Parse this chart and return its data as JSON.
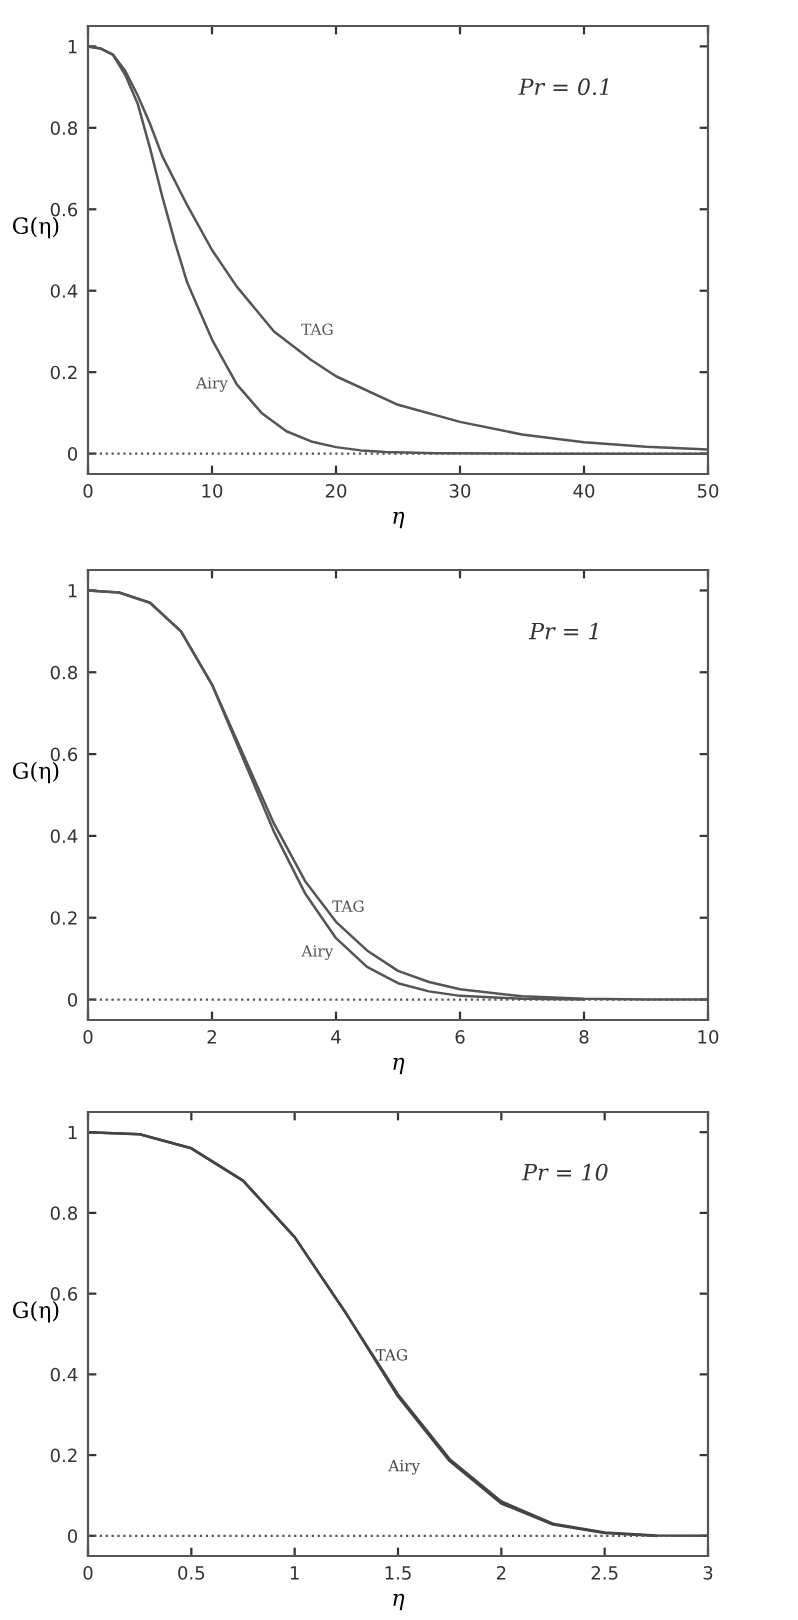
{
  "chart_data": [
    {
      "type": "line",
      "xlabel": "η",
      "ylabel": "G(η)",
      "xlim": [
        0,
        50
      ],
      "ylim": [
        -0.05,
        1.05
      ],
      "xticks": [
        0,
        10,
        20,
        30,
        40,
        50
      ],
      "yticks": [
        0,
        0.2,
        0.4,
        0.6,
        0.8,
        1
      ],
      "grid": false,
      "marker": "none",
      "line_style": "solid",
      "series": [
        {
          "name": "TAG",
          "color": "#555555",
          "x": [
            0,
            1,
            2,
            3,
            4,
            5,
            6,
            8,
            10,
            12,
            15,
            18,
            20,
            25,
            30,
            35,
            40,
            45,
            50
          ],
          "values": [
            1,
            0.995,
            0.98,
            0.94,
            0.88,
            0.81,
            0.73,
            0.61,
            0.5,
            0.41,
            0.3,
            0.23,
            0.19,
            0.12,
            0.078,
            0.047,
            0.028,
            0.017,
            0.01
          ]
        },
        {
          "name": "Airy",
          "color": "#555555",
          "x": [
            0,
            1,
            2,
            3,
            4,
            5,
            6,
            7,
            8,
            10,
            12,
            14,
            16,
            18,
            20,
            22,
            24,
            28,
            35,
            50
          ],
          "values": [
            1,
            0.995,
            0.98,
            0.93,
            0.86,
            0.75,
            0.63,
            0.52,
            0.42,
            0.28,
            0.17,
            0.1,
            0.055,
            0.03,
            0.016,
            0.008,
            0.004,
            0.001,
            0,
            0
          ]
        }
      ],
      "ref_lines": [
        {
          "axis": "y",
          "value": 0,
          "line_style": "dotted",
          "color": "#555555"
        }
      ],
      "annotations": [
        "Pr = 0.1"
      ]
    },
    {
      "type": "line",
      "xlabel": "η",
      "ylabel": "G(η)",
      "xlim": [
        0,
        10
      ],
      "ylim": [
        -0.05,
        1.05
      ],
      "xticks": [
        0,
        2,
        4,
        6,
        8,
        10
      ],
      "yticks": [
        0,
        0.2,
        0.4,
        0.6,
        0.8,
        1
      ],
      "grid": false,
      "marker": "none",
      "line_style": "solid",
      "series": [
        {
          "name": "TAG",
          "color": "#555555",
          "x": [
            0,
            0.5,
            1,
            1.5,
            2,
            2.5,
            3,
            3.5,
            4,
            4.5,
            5,
            5.5,
            6,
            7,
            8,
            9,
            10
          ],
          "values": [
            1,
            0.995,
            0.97,
            0.9,
            0.77,
            0.6,
            0.43,
            0.29,
            0.19,
            0.12,
            0.07,
            0.043,
            0.025,
            0.008,
            0.002,
            0,
            0
          ]
        },
        {
          "name": "Airy",
          "color": "#555555",
          "x": [
            0,
            0.5,
            1,
            1.5,
            2,
            2.5,
            3,
            3.5,
            4,
            4.5,
            5,
            5.5,
            6,
            7,
            8
          ],
          "values": [
            1,
            0.995,
            0.97,
            0.9,
            0.77,
            0.59,
            0.41,
            0.26,
            0.15,
            0.08,
            0.04,
            0.02,
            0.009,
            0.002,
            0
          ]
        }
      ],
      "ref_lines": [
        {
          "axis": "y",
          "value": 0,
          "line_style": "dotted",
          "color": "#555555"
        }
      ],
      "annotations": [
        "Pr = 1"
      ]
    },
    {
      "type": "line",
      "xlabel": "η",
      "ylabel": "G(η)",
      "xlim": [
        0,
        3
      ],
      "ylim": [
        -0.05,
        1.05
      ],
      "xticks": [
        0,
        0.5,
        1,
        1.5,
        2,
        2.5,
        3
      ],
      "yticks": [
        0,
        0.2,
        0.4,
        0.6,
        0.8,
        1
      ],
      "grid": false,
      "marker": "none",
      "line_style": "solid",
      "series": [
        {
          "name": "TAG",
          "color": "#444444",
          "x": [
            0,
            0.25,
            0.5,
            0.75,
            1,
            1.25,
            1.5,
            1.75,
            2,
            2.25,
            2.5,
            2.75,
            3
          ],
          "values": [
            1,
            0.995,
            0.96,
            0.88,
            0.74,
            0.55,
            0.35,
            0.19,
            0.085,
            0.03,
            0.008,
            0.001,
            0
          ]
        },
        {
          "name": "Airy",
          "color": "#444444",
          "x": [
            0,
            0.25,
            0.5,
            0.75,
            1,
            1.25,
            1.5,
            1.75,
            2,
            2.25,
            2.5,
            2.75
          ],
          "values": [
            1,
            0.995,
            0.96,
            0.88,
            0.74,
            0.55,
            0.345,
            0.185,
            0.08,
            0.028,
            0.007,
            0
          ]
        }
      ],
      "ref_lines": [
        {
          "axis": "y",
          "value": 0,
          "line_style": "dotted",
          "color": "#555555"
        }
      ],
      "annotations": [
        "Pr = 10"
      ]
    }
  ]
}
